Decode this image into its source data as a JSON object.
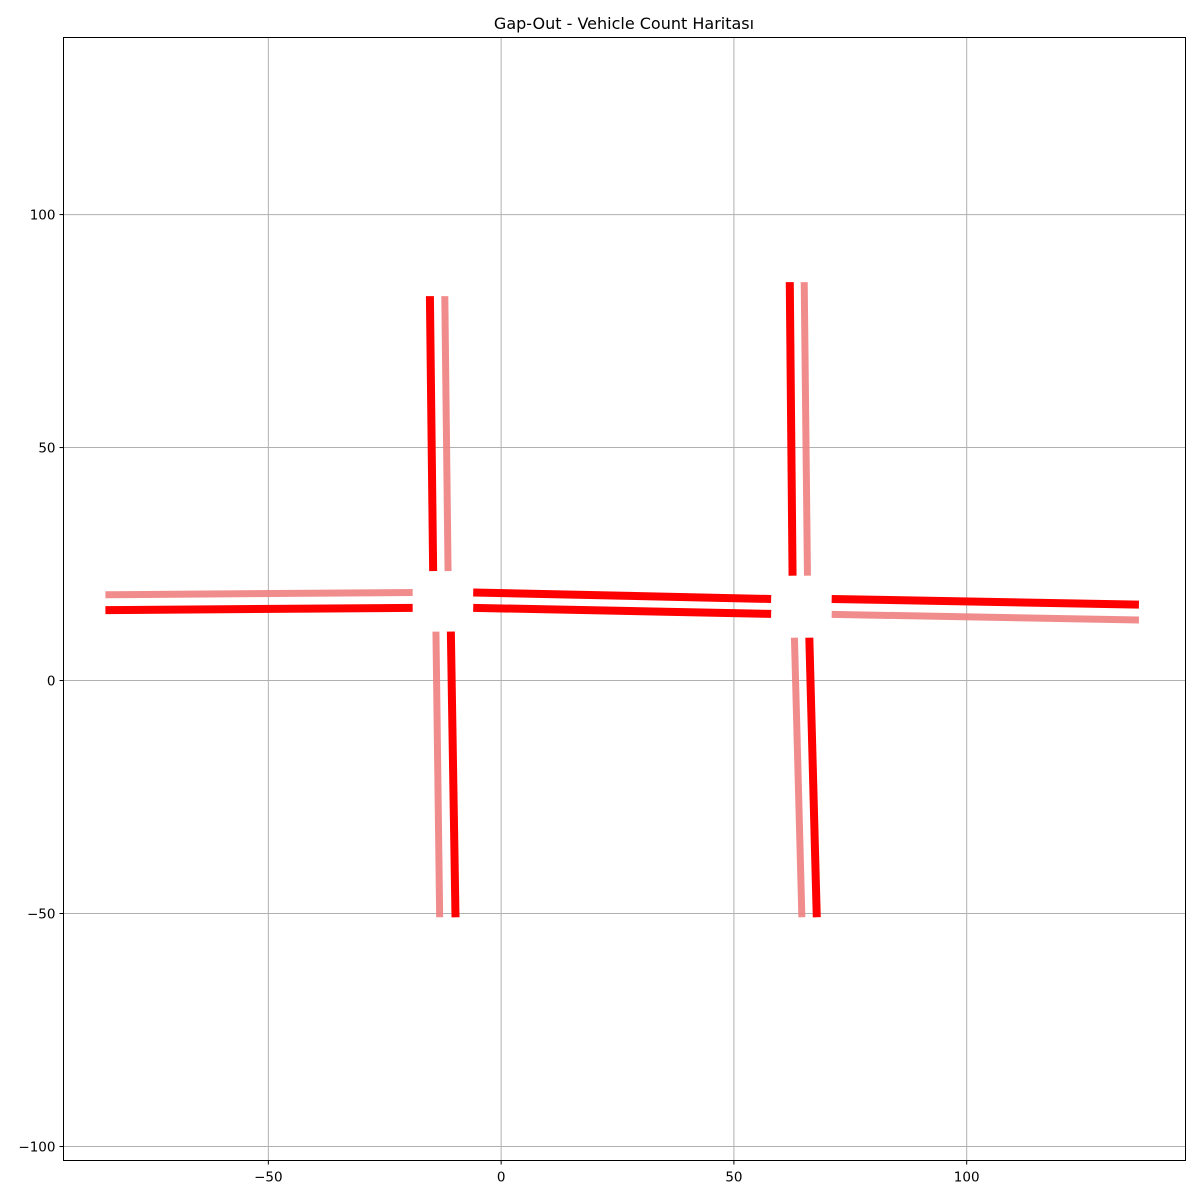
{
  "chart_data": {
    "type": "line",
    "title": "Gap-Out - Vehicle Count Haritası",
    "xlabel": "",
    "ylabel": "",
    "xlim": [
      -94,
      147
    ],
    "ylim": [
      -103,
      138
    ],
    "grid": true,
    "x_ticks": [
      {
        "value": -50,
        "label": "−50"
      },
      {
        "value": 0,
        "label": "0"
      },
      {
        "value": 50,
        "label": "50"
      },
      {
        "value": 100,
        "label": "100"
      }
    ],
    "y_ticks": [
      {
        "value": -100,
        "label": "−100"
      },
      {
        "value": -50,
        "label": "−50"
      },
      {
        "value": 0,
        "label": "0"
      },
      {
        "value": 50,
        "label": "50"
      },
      {
        "value": 100,
        "label": "100"
      }
    ],
    "colors": {
      "high": "#ff0000",
      "light": "#f08080"
    },
    "segments": [
      {
        "id": "west-in",
        "color": "high",
        "x": [
          -85,
          -19
        ],
        "y": [
          15.1,
          15.6
        ]
      },
      {
        "id": "west-out",
        "color": "light",
        "x": [
          -85,
          -19
        ],
        "y": [
          18.4,
          18.9
        ]
      },
      {
        "id": "center-a",
        "color": "high",
        "x": [
          -6,
          58
        ],
        "y": [
          18.9,
          17.5
        ]
      },
      {
        "id": "center-b",
        "color": "high",
        "x": [
          -6,
          58
        ],
        "y": [
          15.6,
          14.3
        ]
      },
      {
        "id": "east-a",
        "color": "high",
        "x": [
          71,
          137
        ],
        "y": [
          17.5,
          16.3
        ]
      },
      {
        "id": "east-b",
        "color": "light",
        "x": [
          71,
          137
        ],
        "y": [
          14.2,
          13.0
        ]
      },
      {
        "id": "n1-a",
        "color": "high",
        "x": [
          -15.3,
          -14.6
        ],
        "y": [
          82.5,
          23.5
        ]
      },
      {
        "id": "n1-b",
        "color": "light",
        "x": [
          -12.1,
          -11.4
        ],
        "y": [
          82.5,
          23.5
        ]
      },
      {
        "id": "s1-a",
        "color": "light",
        "x": [
          -14.0,
          -13.2
        ],
        "y": [
          10.5,
          -50.8
        ]
      },
      {
        "id": "s1-b",
        "color": "high",
        "x": [
          -10.8,
          -9.8
        ],
        "y": [
          10.5,
          -50.8
        ]
      },
      {
        "id": "n2-a",
        "color": "high",
        "x": [
          62.0,
          62.6
        ],
        "y": [
          85.5,
          22.5
        ]
      },
      {
        "id": "n2-b",
        "color": "light",
        "x": [
          65.1,
          65.8
        ],
        "y": [
          85.5,
          22.5
        ]
      },
      {
        "id": "s2-a",
        "color": "light",
        "x": [
          63.0,
          64.6
        ],
        "y": [
          9.2,
          -50.8
        ]
      },
      {
        "id": "s2-b",
        "color": "high",
        "x": [
          66.2,
          67.8
        ],
        "y": [
          9.2,
          -50.8
        ]
      }
    ]
  }
}
